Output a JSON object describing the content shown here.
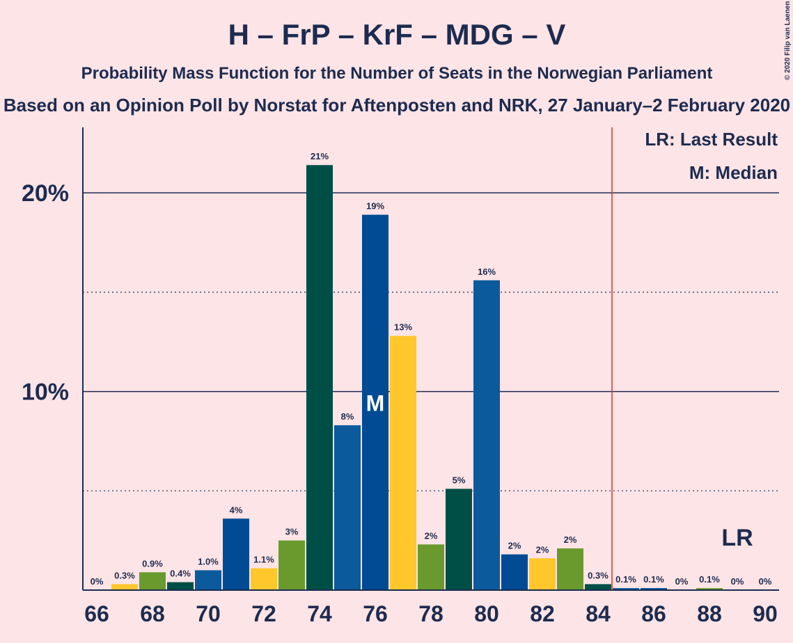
{
  "chart_data": {
    "type": "bar",
    "title": "H – FrP – KrF – MDG – V",
    "subtitle": "Probability Mass Function for the Number of Seats in the Norwegian Parliament",
    "subtitle2": "Based on an Opinion Poll by Norstat for Aftenposten and NRK, 27 January–2 February 2020",
    "copyright": "© 2020 Filip van Laenen",
    "x": [
      66,
      67,
      68,
      69,
      70,
      71,
      72,
      73,
      74,
      75,
      76,
      77,
      78,
      79,
      80,
      81,
      82,
      83,
      84,
      85,
      86,
      87,
      88,
      89,
      90
    ],
    "values": [
      0,
      0.3,
      0.9,
      0.4,
      1.0,
      3.6,
      1.1,
      2.5,
      21.4,
      8.3,
      18.9,
      12.8,
      2.3,
      5.1,
      15.6,
      1.8,
      1.6,
      2.1,
      0.3,
      0.1,
      0.1,
      0,
      0.1,
      0,
      0
    ],
    "value_labels": [
      "0%",
      "0.3%",
      "0.9%",
      "0.4%",
      "1.0%",
      "4%",
      "1.1%",
      "3%",
      "21%",
      "8%",
      "19%",
      "13%",
      "2%",
      "5%",
      "16%",
      "2%",
      "2%",
      "2%",
      "0.3%",
      "0.1%",
      "0.1%",
      "0%",
      "0.1%",
      "0%",
      "0%"
    ],
    "colors": [
      "#004b93",
      "#ffc72c",
      "#6a9a2e",
      "#004f46",
      "#0b5a9c",
      "#004b93",
      "#ffc72c",
      "#6a9a2e",
      "#004f46",
      "#0b5a9c",
      "#004b93",
      "#ffc72c",
      "#6a9a2e",
      "#004f46",
      "#0b5a9c",
      "#004b93",
      "#ffc72c",
      "#6a9a2e",
      "#004f46",
      "#0b5a9c",
      "#004b93",
      "#ffc72c",
      "#6a9a2e",
      "#004f46",
      "#0b5a9c"
    ],
    "xlim": [
      65.5,
      90.5
    ],
    "xticks": [
      66,
      68,
      70,
      72,
      74,
      76,
      78,
      80,
      82,
      84,
      86,
      88,
      90
    ],
    "ylim": [
      0,
      23.3
    ],
    "yticks": [
      {
        "value": 10,
        "label": "10%"
      },
      {
        "value": 20,
        "label": "20%"
      }
    ],
    "minor_yticks": [
      5,
      15
    ],
    "majority_line": 84.5,
    "median": 76,
    "median_label": "M",
    "last_result": 89,
    "last_result_label": "LR",
    "legend": [
      "LR: Last Result",
      "M: Median"
    ]
  }
}
